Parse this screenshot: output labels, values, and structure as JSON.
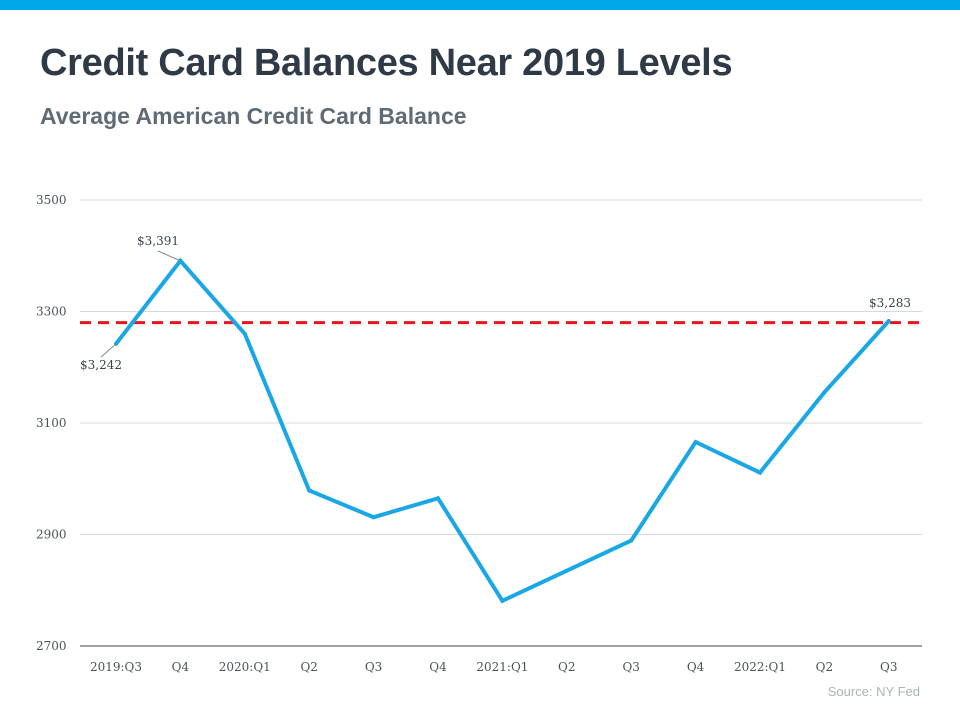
{
  "title": "Credit Card Balances Near 2019 Levels",
  "subtitle": "Average American Credit Card Balance",
  "source": "Source: NY Fed",
  "colors": {
    "accent": "#00a8e8",
    "line": "#1aa7e6",
    "reference": "#e8151b",
    "grid": "#d9d9d9"
  },
  "chart_data": {
    "type": "line",
    "categories": [
      "2019:Q3",
      "Q4",
      "2020:Q1",
      "Q2",
      "Q3",
      "Q4",
      "2021:Q1",
      "Q2",
      "Q3",
      "Q4",
      "2022:Q1",
      "Q2",
      "Q3"
    ],
    "series": [
      {
        "name": "Average American Credit Card Balance",
        "values": [
          3242,
          3391,
          3260,
          2979,
          2931,
          2965,
          2781,
          2835,
          2889,
          3066,
          3011,
          3155,
          3283
        ]
      }
    ],
    "reference_line": {
      "value": 3280,
      "style": "dashed"
    },
    "ylim": [
      2700,
      3500
    ],
    "yticks": [
      2700,
      2900,
      3100,
      3300,
      3500
    ],
    "data_labels": [
      {
        "index": 0,
        "text": "$3,242"
      },
      {
        "index": 1,
        "text": "$3,391"
      },
      {
        "index": 12,
        "text": "$3,283"
      }
    ],
    "grid": true,
    "legend": "none",
    "xlabel": "",
    "ylabel": ""
  }
}
